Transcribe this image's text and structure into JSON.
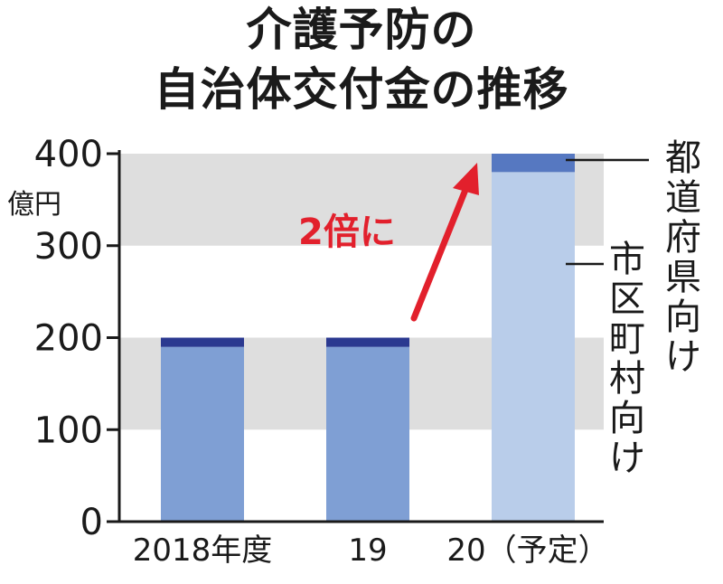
{
  "chart_data": {
    "type": "bar",
    "stacked": true,
    "title": "介護予防の\n自治体交付金の推移",
    "title_lines": [
      "介護予防の",
      "自治体交付金の推移"
    ],
    "unit": "億円",
    "categories": [
      "2018年度",
      "19",
      "20（予定）"
    ],
    "series": [
      {
        "name": "市区町村向け",
        "values": [
          190,
          190,
          380
        ],
        "colors": [
          "#7f9fd4",
          "#7f9fd4",
          "#b9cdea"
        ]
      },
      {
        "name": "都道府県向け",
        "values": [
          10,
          10,
          20
        ],
        "colors": [
          "#2b3990",
          "#2b3990",
          "#5678c1"
        ]
      }
    ],
    "ylim": [
      0,
      400
    ],
    "yticks": [
      0,
      100,
      200,
      300,
      400
    ],
    "grid": "alternating-bands",
    "band_color": "#dedede",
    "annotation": {
      "text": "2倍に",
      "color": "#e2202c"
    },
    "legend_labels": {
      "prefecture": "都道府県向け",
      "municipality": "市区町村向け"
    }
  }
}
